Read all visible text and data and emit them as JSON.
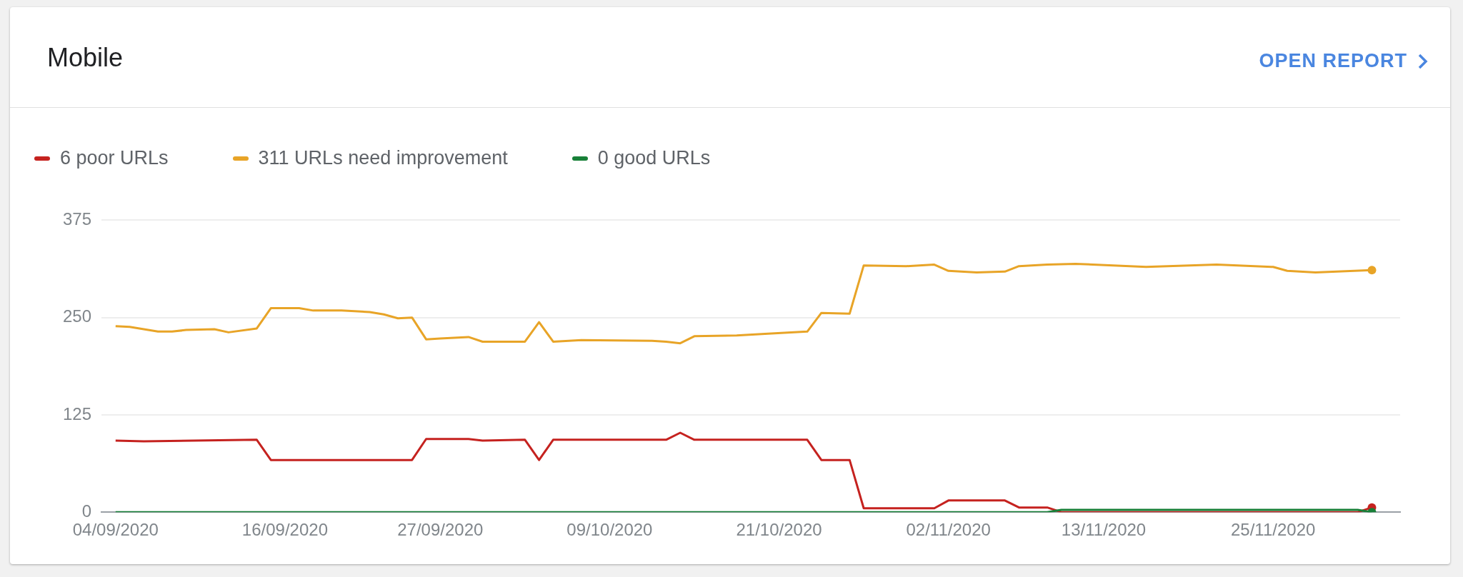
{
  "chart_data": {
    "type": "line",
    "title": "Mobile",
    "annotations": [
      "OPEN REPORT"
    ],
    "legend": "top left",
    "grid": "y",
    "line_style": "solid",
    "xlim": [
      "2020-09-03",
      "2020-12-04"
    ],
    "xticks": [
      {
        "value": "2020-09-04",
        "label": "04/09/2020"
      },
      {
        "value": "2020-09-16",
        "label": "16/09/2020"
      },
      {
        "value": "2020-09-27",
        "label": "27/09/2020"
      },
      {
        "value": "2020-10-09",
        "label": "09/10/2020"
      },
      {
        "value": "2020-10-21",
        "label": "21/10/2020"
      },
      {
        "value": "2020-11-02",
        "label": "02/11/2020"
      },
      {
        "value": "2020-11-13",
        "label": "13/11/2020"
      },
      {
        "value": "2020-11-25",
        "label": "25/11/2020"
      }
    ],
    "ylim": [
      0,
      375
    ],
    "yticks": [
      0,
      125,
      250,
      375
    ],
    "series": [
      {
        "name": "6 poor URLs",
        "color": "#c5221f",
        "x": [
          "2020-09-04",
          "2020-09-06",
          "2020-09-14",
          "2020-09-15",
          "2020-09-25",
          "2020-09-26",
          "2020-09-29",
          "2020-09-30",
          "2020-10-03",
          "2020-10-04",
          "2020-10-05",
          "2020-10-13",
          "2020-10-14",
          "2020-10-15",
          "2020-10-23",
          "2020-10-24",
          "2020-10-26",
          "2020-10-27",
          "2020-11-01",
          "2020-11-02",
          "2020-11-06",
          "2020-11-07",
          "2020-11-09",
          "2020-11-10",
          "2020-12-01",
          "2020-12-02"
        ],
        "values": [
          92,
          91,
          93,
          67,
          67,
          94,
          94,
          92,
          93,
          67,
          93,
          93,
          102,
          93,
          93,
          67,
          67,
          5,
          5,
          15,
          15,
          6,
          6,
          0,
          0,
          6
        ]
      },
      {
        "name": "311 URLs need improvement",
        "color": "#e8a427",
        "x": [
          "2020-09-04",
          "2020-09-05",
          "2020-09-07",
          "2020-09-08",
          "2020-09-09",
          "2020-09-11",
          "2020-09-12",
          "2020-09-14",
          "2020-09-15",
          "2020-09-17",
          "2020-09-18",
          "2020-09-20",
          "2020-09-22",
          "2020-09-23",
          "2020-09-24",
          "2020-09-25",
          "2020-09-26",
          "2020-09-27",
          "2020-09-29",
          "2020-09-30",
          "2020-10-03",
          "2020-10-04",
          "2020-10-05",
          "2020-10-07",
          "2020-10-12",
          "2020-10-13",
          "2020-10-14",
          "2020-10-15",
          "2020-10-18",
          "2020-10-20",
          "2020-10-23",
          "2020-10-24",
          "2020-10-26",
          "2020-10-27",
          "2020-10-30",
          "2020-11-01",
          "2020-11-02",
          "2020-11-04",
          "2020-11-06",
          "2020-11-07",
          "2020-11-09",
          "2020-11-11",
          "2020-11-16",
          "2020-11-21",
          "2020-11-25",
          "2020-11-26",
          "2020-11-28",
          "2020-12-02"
        ],
        "values": [
          239,
          238,
          232,
          232,
          234,
          235,
          231,
          236,
          262,
          262,
          259,
          259,
          257,
          254,
          249,
          250,
          222,
          223,
          225,
          219,
          219,
          244,
          219,
          221,
          220,
          219,
          217,
          226,
          227,
          229,
          232,
          256,
          255,
          317,
          316,
          318,
          310,
          308,
          309,
          316,
          318,
          319,
          315,
          318,
          315,
          310,
          308,
          311
        ]
      },
      {
        "name": "0 good URLs",
        "color": "#188038",
        "x": [
          "2020-09-04",
          "2020-11-09",
          "2020-11-10",
          "2020-12-01",
          "2020-12-02"
        ],
        "values": [
          0,
          0,
          3,
          3,
          0
        ]
      }
    ]
  }
}
